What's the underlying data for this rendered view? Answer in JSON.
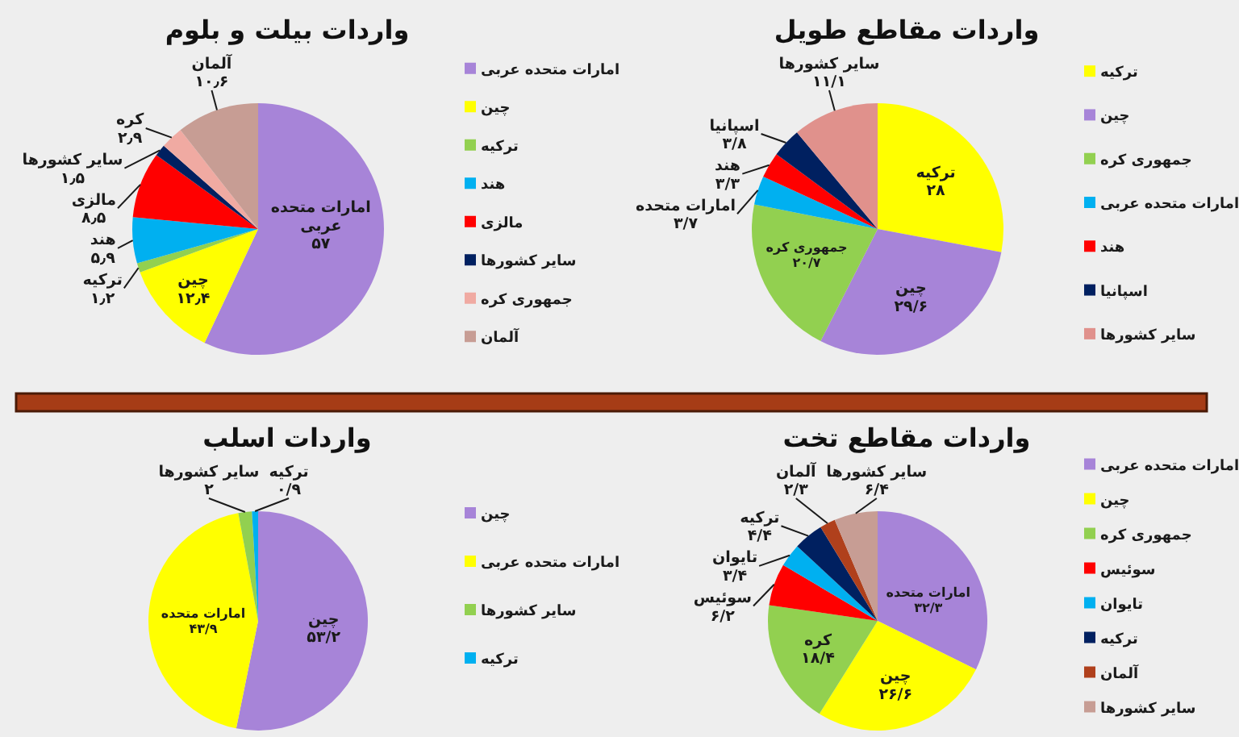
{
  "chart_data": [
    {
      "type": "pie",
      "title": "واردات بیلت و بلوم",
      "categories": [
        "امارات متحده عربی",
        "چین",
        "ترکیه",
        "هند",
        "مالزی",
        "سایر کشورها",
        "جمهوری کره",
        "آلمان"
      ],
      "values": [
        57,
        12.4,
        1.2,
        5.9,
        8.5,
        1.5,
        2.9,
        10.6
      ],
      "colors": [
        "#a784d8",
        "#ffff00",
        "#92d050",
        "#00b0f0",
        "#ff0000",
        "#002060",
        "#f0aaa2",
        "#c79d94"
      ],
      "value_labels": [
        "امارات متحده\nعربی\n۵۷",
        "چین\n۱۲٫۴",
        "ترکیه\n۱٫۲",
        "هند\n۵٫۹",
        "مالزی\n۸٫۵",
        "سایر کشورها\n۱٫۵",
        "کره\n۲٫۹",
        "آلمان\n۱۰٫۶"
      ],
      "legend": "right"
    },
    {
      "type": "pie",
      "title": "واردات مقاطع طویل",
      "categories": [
        "ترکیه",
        "چین",
        "جمهوری کره",
        "امارات متحده عربی",
        "هند",
        "اسپانیا",
        "سایر کشورها"
      ],
      "values": [
        28,
        29.6,
        20.7,
        3.7,
        3.3,
        3.8,
        11.1
      ],
      "colors": [
        "#ffff00",
        "#a784d8",
        "#92d050",
        "#00b0f0",
        "#ff0000",
        "#002060",
        "#e0918c"
      ],
      "value_labels": [
        "ترکیه\n۲۸",
        "چین\n۲۹/۶",
        "جمهوری کره\n۲۰/۷",
        "امارات متحده\n۳/۷",
        "هند\n۳/۳",
        "اسپانیا\n۳/۸",
        "سایر کشورها\n۱۱/۱"
      ],
      "legend": "right"
    },
    {
      "type": "pie",
      "title": "واردات اسلب",
      "categories": [
        "چین",
        "امارات متحده عربی",
        "سایر کشورها",
        "ترکیه"
      ],
      "values": [
        53.2,
        43.9,
        2,
        0.9
      ],
      "colors": [
        "#a784d8",
        "#ffff00",
        "#92d050",
        "#00b0f0"
      ],
      "value_labels": [
        "چین\n۵۳/۲",
        "امارات متحده\n۴۳/۹",
        "سایر کشورها\n۲",
        "ترکیه\n۰/۹"
      ],
      "legend": "right"
    },
    {
      "type": "pie",
      "title": "واردات مقاطع تخت",
      "categories": [
        "امارات متحده عربی",
        "چین",
        "جمهوری کره",
        "سوئیس",
        "تایوان",
        "ترکیه",
        "آلمان",
        "سایر کشورها"
      ],
      "values": [
        32.3,
        26.6,
        18.4,
        6.2,
        3.4,
        4.4,
        2.3,
        6.4
      ],
      "colors": [
        "#a784d8",
        "#ffff00",
        "#92d050",
        "#ff0000",
        "#00b0f0",
        "#002060",
        "#b0401c",
        "#c79d94"
      ],
      "value_labels": [
        "امارات متحده\n۳۲/۳",
        "چین\n۲۶/۶",
        "کره\n۱۸/۴",
        "سوئیس\n۶/۲",
        "تایوان\n۳/۴",
        "ترکیه\n۴/۴",
        "آلمان\n۲/۳",
        "سایر کشورها\n۶/۴"
      ],
      "legend": "right"
    }
  ]
}
